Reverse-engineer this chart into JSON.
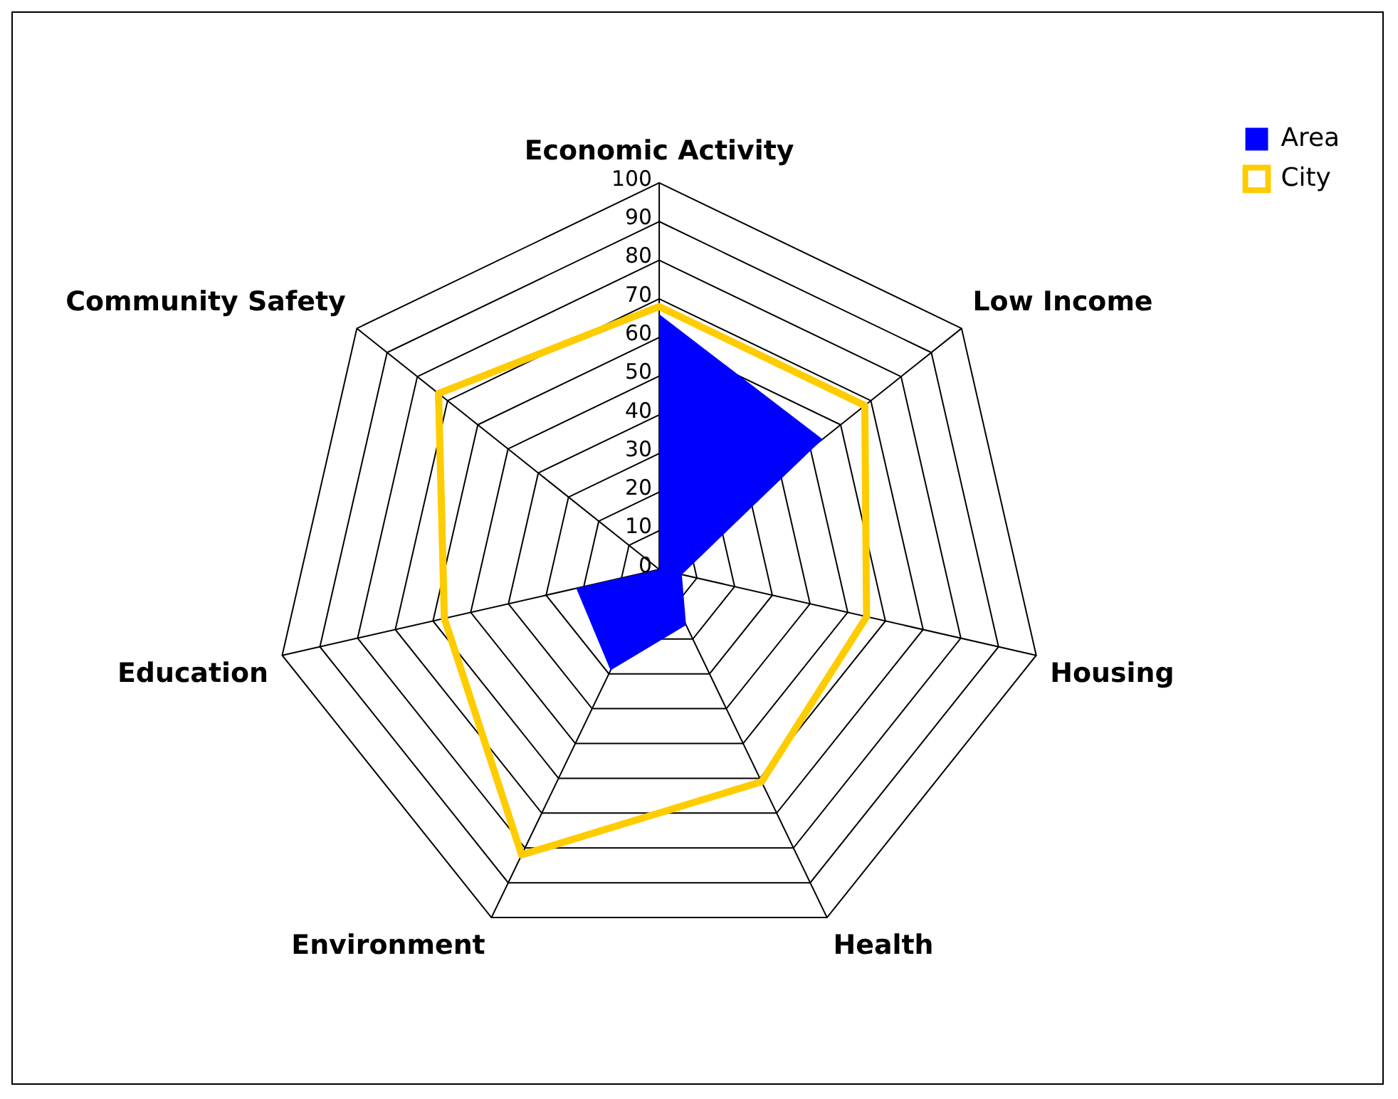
{
  "chart_data": {
    "type": "radar",
    "categories": [
      "Economic Activity",
      "Low Income",
      "Housing",
      "Health",
      "Environment",
      "Education",
      "Community Safety"
    ],
    "series": [
      {
        "name": "Area",
        "color": "#0000ff",
        "values": [
          66,
          54,
          6,
          16,
          29,
          22,
          0
        ]
      },
      {
        "name": "City",
        "color": "#ffcc00",
        "line_style": "solid",
        "values": [
          68,
          68,
          55,
          61,
          82,
          57,
          73
        ]
      }
    ],
    "ylim": [
      0,
      100
    ],
    "yticks": [
      0,
      10,
      20,
      30,
      40,
      50,
      60,
      70,
      80,
      90,
      100
    ],
    "grid": true,
    "legend": "top right",
    "marker": "none"
  }
}
